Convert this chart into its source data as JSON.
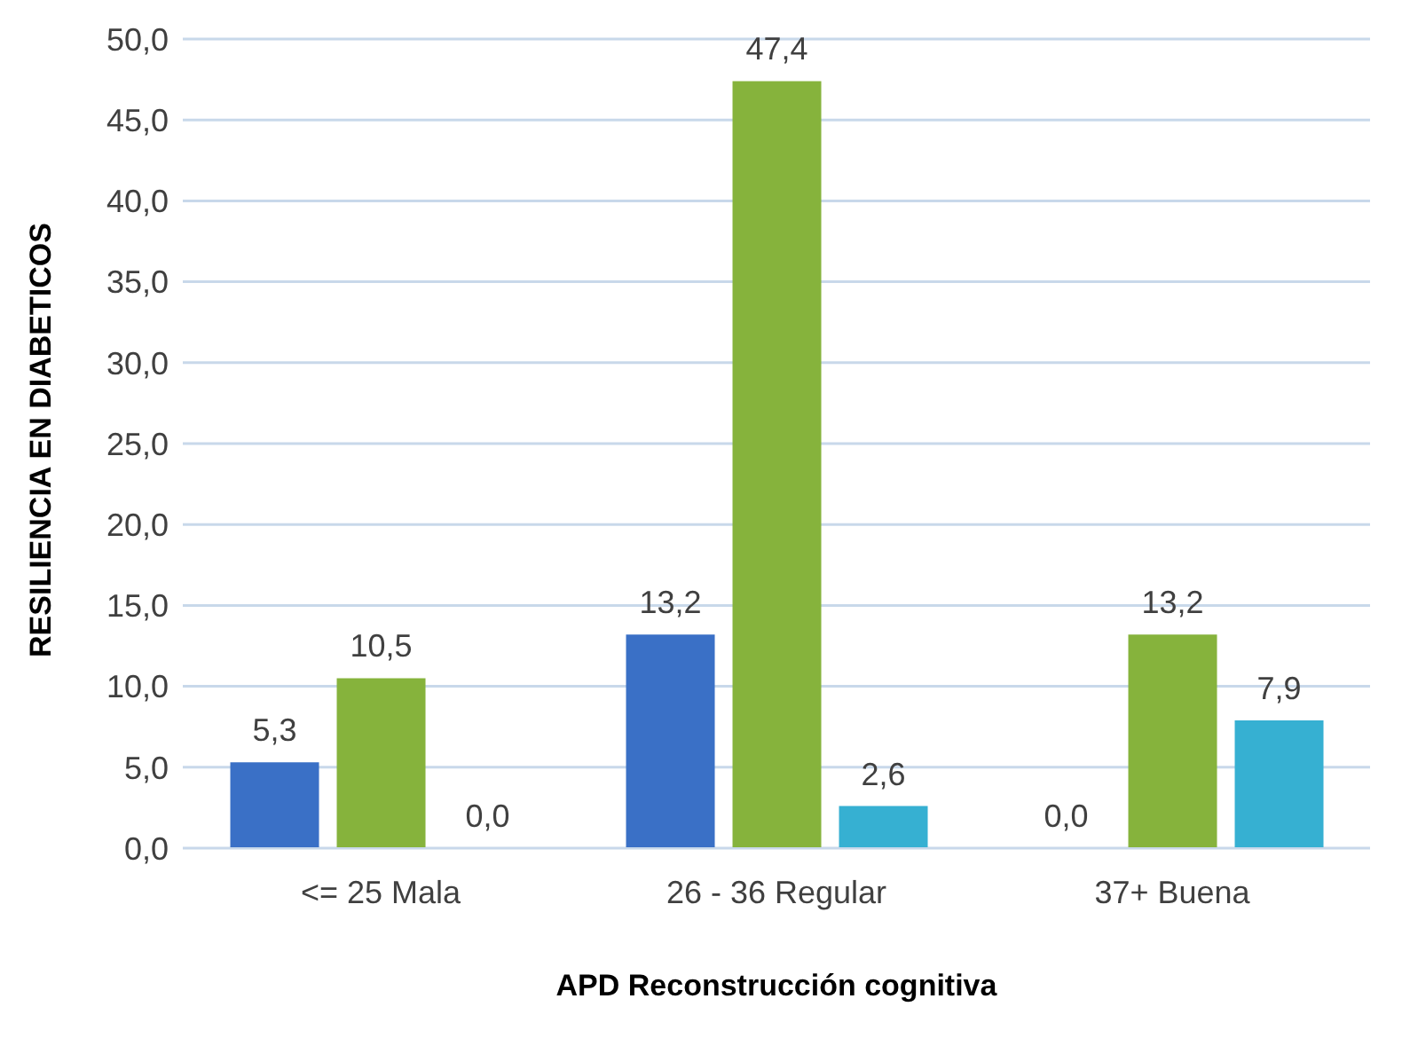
{
  "chart_data": {
    "type": "bar",
    "xlabel": "APD Reconstrucción cognitiva",
    "ylabel": "RESILIENCIA EN DIABETICOS",
    "categories": [
      "<= 25 Mala",
      "26 - 36 Regular",
      "37+ Buena"
    ],
    "series": [
      {
        "color": "#3a70c6",
        "values": [
          5.3,
          13.2,
          0.0
        ],
        "value_labels": [
          "5,3",
          "13,2",
          "0,0"
        ]
      },
      {
        "color": "#86b33c",
        "values": [
          10.5,
          47.4,
          13.2
        ],
        "value_labels": [
          "10,5",
          "47,4",
          "13,2"
        ]
      },
      {
        "color": "#36b0d2",
        "values": [
          0.0,
          2.6,
          7.9
        ],
        "value_labels": [
          "0,0",
          "2,6",
          "7,9"
        ]
      }
    ],
    "ylim": [
      0,
      50
    ],
    "yticks": [
      {
        "value": 0,
        "label": "0,0"
      },
      {
        "value": 5,
        "label": "5,0"
      },
      {
        "value": 10,
        "label": "10,0"
      },
      {
        "value": 15,
        "label": "15,0"
      },
      {
        "value": 20,
        "label": "20,0"
      },
      {
        "value": 25,
        "label": "25,0"
      },
      {
        "value": 30,
        "label": "30,0"
      },
      {
        "value": 35,
        "label": "35,0"
      },
      {
        "value": 40,
        "label": "40,0"
      },
      {
        "value": 45,
        "label": "45,0"
      },
      {
        "value": 50,
        "label": "50,0"
      }
    ],
    "grid": "y"
  }
}
